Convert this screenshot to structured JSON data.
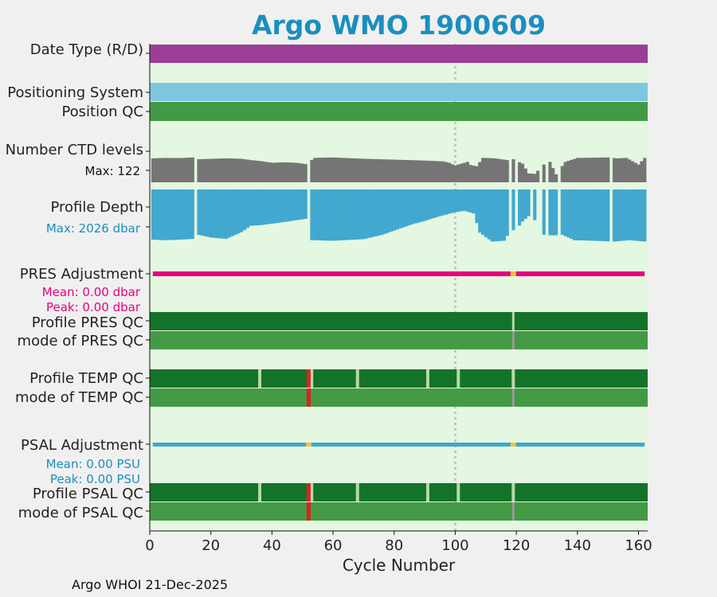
{
  "title": "Argo WMO 1900609",
  "footer": "Argo WHOI 21-Dec-2025",
  "colors": {
    "panel_bg": "#e4f7e0",
    "date_type": "#9b3d99",
    "positioning": "#7ec6e0",
    "position_qc": "#449a44",
    "ctd": "#757575",
    "depth": "#42a8cf",
    "pres_adj": "#e6007e",
    "psal_adj": "#3ca7d0",
    "profile_qc": "#137329",
    "mode_qc": "#449a44",
    "bad_qc": "#e02020",
    "gap_qc": "#b6d9a9",
    "marker": "#999999",
    "missing_adj": "#f0c040"
  },
  "labels": {
    "date_type": "Date Type (R/D)",
    "positioning_system": "Positioning System",
    "position_qc": "Position QC",
    "ctd_levels": "Number CTD levels",
    "ctd_max": "Max: 122",
    "profile_depth": "Profile Depth",
    "depth_max": "Max: 2026 dbar",
    "pres_adjustment": "PRES Adjustment",
    "pres_mean": "Mean: 0.00 dbar",
    "pres_peak": "Peak: 0.00 dbar",
    "profile_pres_qc": "Profile PRES QC",
    "mode_pres_qc": "mode of PRES QC",
    "profile_temp_qc": "Profile TEMP QC",
    "mode_temp_qc": "mode of TEMP QC",
    "psal_adjustment": "PSAL Adjustment",
    "psal_mean": "Mean: 0.00 PSU",
    "psal_peak": "Peak: 0.00 PSU",
    "profile_psal_qc": "Profile PSAL QC",
    "mode_psal_qc": "mode of PSAL QC"
  },
  "chart_data": {
    "type": "bar",
    "xlabel": "Cycle Number",
    "xlim": [
      0,
      163
    ],
    "xticks": [
      0,
      20,
      40,
      60,
      80,
      100,
      120,
      140,
      160
    ],
    "marker_cycle": 100,
    "ctd_levels_max": 122,
    "profile_depth_max_dbar": 2026,
    "ctd_missing_cycles": [
      15,
      52,
      118,
      120,
      128,
      130,
      134,
      151
    ],
    "ctd_levels_series": [
      [
        1,
        108
      ],
      [
        5,
        110
      ],
      [
        10,
        109
      ],
      [
        14,
        112
      ],
      [
        16,
        104
      ],
      [
        25,
        108
      ],
      [
        30,
        106
      ],
      [
        33,
        100
      ],
      [
        36,
        96
      ],
      [
        40,
        88
      ],
      [
        44,
        90
      ],
      [
        48,
        88
      ],
      [
        51,
        82
      ],
      [
        54,
        110
      ],
      [
        60,
        112
      ],
      [
        70,
        106
      ],
      [
        80,
        102
      ],
      [
        90,
        98
      ],
      [
        96,
        94
      ],
      [
        98,
        88
      ],
      [
        100,
        76
      ],
      [
        102,
        84
      ],
      [
        104,
        92
      ],
      [
        105,
        78
      ],
      [
        107,
        72
      ],
      [
        109,
        110
      ],
      [
        113,
        108
      ],
      [
        117,
        100
      ],
      [
        119,
        104
      ],
      [
        122,
        84
      ],
      [
        124,
        40
      ],
      [
        126,
        38
      ],
      [
        129,
        80
      ],
      [
        131,
        92
      ],
      [
        133,
        36
      ],
      [
        136,
        92
      ],
      [
        140,
        110
      ],
      [
        150,
        112
      ],
      [
        153,
        108
      ],
      [
        156,
        110
      ],
      [
        160,
        80
      ],
      [
        162,
        110
      ]
    ],
    "profile_depth_series": [
      [
        1,
        1880
      ],
      [
        5,
        1900
      ],
      [
        10,
        1880
      ],
      [
        14,
        1850
      ],
      [
        16,
        1700
      ],
      [
        20,
        1800
      ],
      [
        25,
        1850
      ],
      [
        30,
        1600
      ],
      [
        33,
        1360
      ],
      [
        36,
        1340
      ],
      [
        40,
        1280
      ],
      [
        44,
        1220
      ],
      [
        48,
        1150
      ],
      [
        51,
        1100
      ],
      [
        53,
        1900
      ],
      [
        60,
        1920
      ],
      [
        70,
        1860
      ],
      [
        76,
        1700
      ],
      [
        81,
        1500
      ],
      [
        86,
        1300
      ],
      [
        90,
        1180
      ],
      [
        95,
        1000
      ],
      [
        100,
        850
      ],
      [
        103,
        800
      ],
      [
        106,
        900
      ],
      [
        108,
        1620
      ],
      [
        112,
        1950
      ],
      [
        116,
        1920
      ],
      [
        118,
        1550
      ],
      [
        120,
        1500
      ],
      [
        122,
        1200
      ],
      [
        124,
        1000
      ],
      [
        126,
        1150
      ],
      [
        129,
        1700
      ],
      [
        132,
        1720
      ],
      [
        135,
        1700
      ],
      [
        139,
        1900
      ],
      [
        145,
        1920
      ],
      [
        152,
        1950
      ],
      [
        157,
        1900
      ],
      [
        162,
        1950
      ]
    ],
    "depth_missing_cycles": [
      15,
      52,
      118,
      120,
      125,
      127,
      128,
      130,
      134,
      151
    ],
    "adjustment_missing_cycles": {
      "pres": [
        119
      ],
      "psal": [
        52,
        119
      ]
    },
    "profile_pres_qc_gaps": [
      119
    ],
    "mode_pres_qc_marks": [
      119
    ],
    "profile_temp_qc_gaps": [
      36,
      53,
      68,
      91,
      101,
      119
    ],
    "temp_bad_cycles": [
      52
    ],
    "mode_temp_qc_marks": [
      119
    ],
    "profile_psal_qc_gaps": [
      36,
      53,
      68,
      91,
      101,
      119
    ],
    "psal_bad_cycles": [
      52
    ],
    "mode_psal_qc_marks": [
      119
    ]
  }
}
